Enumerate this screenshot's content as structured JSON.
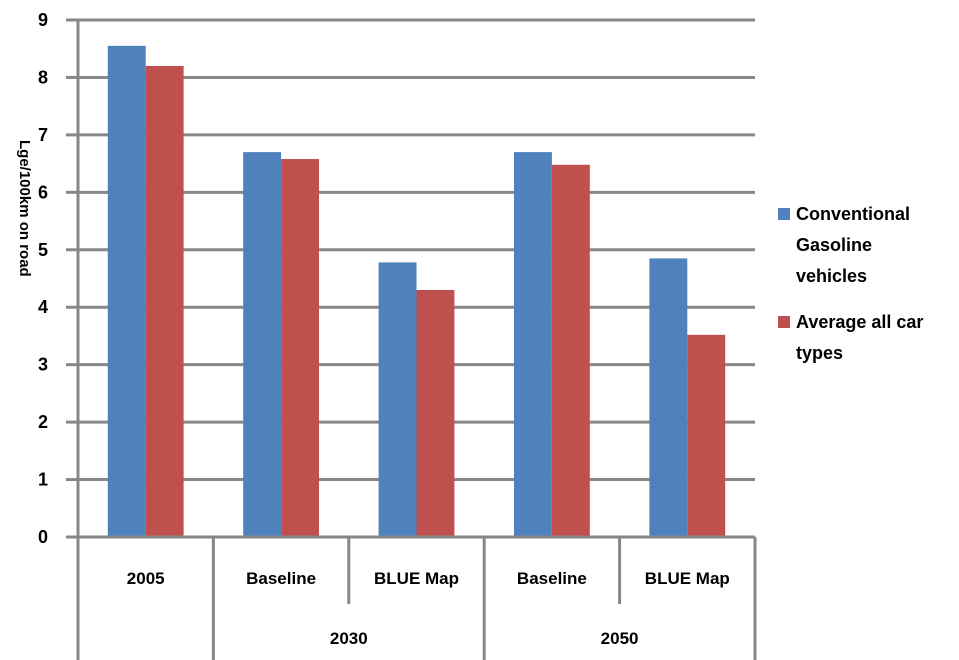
{
  "chart_data": {
    "type": "bar",
    "ylabel": "Lge/100km on road",
    "ylim": [
      0,
      9
    ],
    "yticks": [
      0,
      1,
      2,
      3,
      4,
      5,
      6,
      7,
      8,
      9
    ],
    "grid": true,
    "legend_position": "right",
    "categories": [
      "2005",
      "Baseline",
      "BLUE Map",
      "Baseline",
      "BLUE Map"
    ],
    "category_groups": [
      {
        "label": "",
        "span": 1
      },
      {
        "label": "2030",
        "span": 2
      },
      {
        "label": "2050",
        "span": 2
      }
    ],
    "series": [
      {
        "name": "Conventional Gasoline vehicles",
        "legend_lines": [
          "Conventional",
          "Gasoline",
          "vehicles"
        ],
        "color": "#4F81BD",
        "values": [
          8.55,
          6.7,
          4.78,
          6.7,
          4.85
        ]
      },
      {
        "name": "Average all car types",
        "legend_lines": [
          "Average all car",
          "types"
        ],
        "color": "#C0504D",
        "values": [
          8.2,
          6.58,
          4.3,
          6.48,
          3.52
        ]
      }
    ]
  }
}
